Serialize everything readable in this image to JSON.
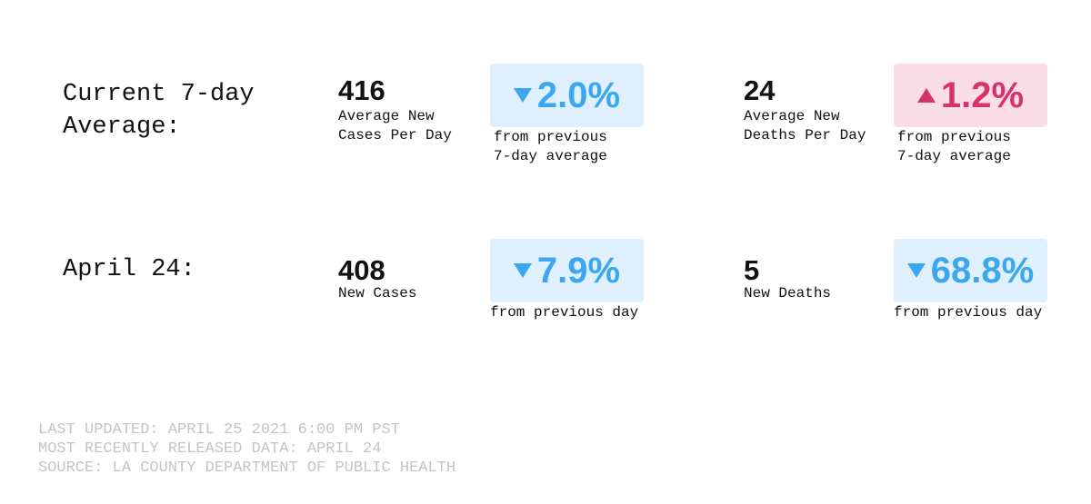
{
  "rows": [
    {
      "label": [
        "Current 7-day",
        "Average:"
      ],
      "stats": [
        {
          "value": "416",
          "caption": [
            "Average New",
            "Cases Per Day"
          ],
          "change": "2.0%",
          "trend": "down",
          "color": "#3aa7f0",
          "background": "#dff0fc",
          "change_caption": [
            "from previous",
            "7-day average"
          ]
        },
        {
          "value": "24",
          "caption": [
            "Average New",
            "Deaths Per Day"
          ],
          "change": "1.2%",
          "trend": "up",
          "color": "#d6336c",
          "background": "#fadde6",
          "change_caption": [
            "from previous",
            "7-day average"
          ]
        }
      ]
    },
    {
      "label": [
        "April 24:"
      ],
      "stats": [
        {
          "value": "408",
          "caption": [
            "New Cases"
          ],
          "change": "7.9%",
          "trend": "down",
          "color": "#3aa7f0",
          "background": "#dff0fc",
          "change_caption": [
            "from previous day"
          ]
        },
        {
          "value": "5",
          "caption": [
            "New Deaths"
          ],
          "change": "68.8%",
          "trend": "down",
          "color": "#3aa7f0",
          "background": "#dff0fc",
          "change_caption": [
            "from previous day"
          ]
        }
      ]
    }
  ],
  "footer": [
    "LAST UPDATED: APRIL 25 2021 6:00 PM PST",
    "MOST RECENTLY RELEASED DATA: APRIL 24",
    "SOURCE: LA COUNTY DEPARTMENT OF PUBLIC HEALTH"
  ]
}
